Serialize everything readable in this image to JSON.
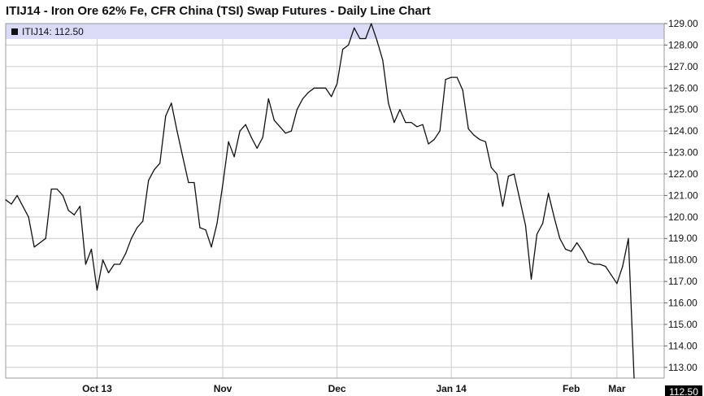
{
  "title": "ITIJ14 - Iron Ore 62% Fe, CFR China (TSI) Swap Futures - Daily Line Chart",
  "legend": {
    "symbol": "ITIJ14",
    "value": "112.50",
    "label": "ITIJ14: 112.50"
  },
  "last_price_label": "112.50",
  "colors": {
    "line": "#111111",
    "grid": "#cccccc",
    "legend_band": "#d9dbf7",
    "last_box": "#000000"
  },
  "chart_data": {
    "type": "line",
    "title": "ITIJ14 - Iron Ore 62% Fe, CFR China (TSI) Swap Futures - Daily Line Chart",
    "xlabel": "",
    "ylabel": "",
    "ylim": [
      112.5,
      129.0
    ],
    "y_ticks": [
      "113.00",
      "114.00",
      "115.00",
      "116.00",
      "117.00",
      "118.00",
      "119.00",
      "120.00",
      "121.00",
      "122.00",
      "123.00",
      "124.00",
      "125.00",
      "126.00",
      "127.00",
      "128.00",
      "129.00"
    ],
    "x_tick_labels": [
      "Oct 13",
      "Nov",
      "Dec",
      "Jan 14",
      "Feb",
      "Mar"
    ],
    "x_tick_index": [
      16,
      38,
      58,
      78,
      99,
      107
    ],
    "grid": true,
    "legend_position": "top-left",
    "series": [
      {
        "name": "ITIJ14",
        "values": [
          120.8,
          120.6,
          121.0,
          120.5,
          120.0,
          118.6,
          118.8,
          119.0,
          121.3,
          121.3,
          121.0,
          120.3,
          120.1,
          120.5,
          117.8,
          118.5,
          116.6,
          118.0,
          117.4,
          117.8,
          117.8,
          118.3,
          119.0,
          119.5,
          119.8,
          121.7,
          122.2,
          122.5,
          124.7,
          125.3,
          124.0,
          122.8,
          121.6,
          121.6,
          119.5,
          119.4,
          118.6,
          119.7,
          121.5,
          123.5,
          122.8,
          124.0,
          124.3,
          123.7,
          123.2,
          123.7,
          125.5,
          124.5,
          124.2,
          123.9,
          124.0,
          125.0,
          125.5,
          125.8,
          126.0,
          126.0,
          126.0,
          125.6,
          126.2,
          127.8,
          128.0,
          128.8,
          128.3,
          128.3,
          129.0,
          128.2,
          127.3,
          125.3,
          124.4,
          125.0,
          124.4,
          124.4,
          124.2,
          124.3,
          123.4,
          123.6,
          124.0,
          126.4,
          126.5,
          126.5,
          125.9,
          124.1,
          123.8,
          123.6,
          123.5,
          122.3,
          122.0,
          120.5,
          121.9,
          122.0,
          120.8,
          119.6,
          117.1,
          119.2,
          119.7,
          121.1,
          120.0,
          119.0,
          118.5,
          118.4,
          118.8,
          118.4,
          117.9,
          117.8,
          117.8,
          117.7,
          117.3,
          116.9,
          117.7,
          119.0,
          112.5
        ]
      }
    ]
  }
}
